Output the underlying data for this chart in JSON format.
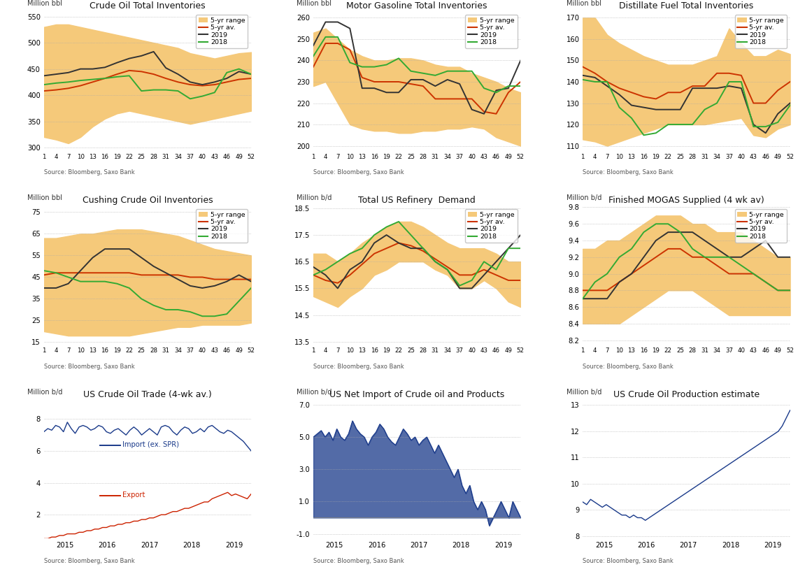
{
  "background_color": "#ffffff",
  "grid_color": "#aaaaaa",
  "range_color": "#f5c97a",
  "av_color": "#cc3300",
  "line2019_color": "#333333",
  "line2018_color": "#33aa33",
  "blue_color": "#1a3a8a",
  "red_color": "#cc2200",
  "source_text": "Source: Bloomberg, Saxo Bank",
  "panel1": {
    "title": "Crude Oil Total Inventories",
    "ylabel": "Million bbl",
    "ylim": [
      295,
      560
    ],
    "yticks": [
      300,
      350,
      400,
      450,
      500,
      550
    ],
    "weeks": [
      1,
      4,
      7,
      10,
      13,
      16,
      19,
      22,
      25,
      28,
      31,
      34,
      37,
      40,
      43,
      46,
      49,
      52
    ],
    "range_low": [
      320,
      315,
      308,
      320,
      340,
      355,
      365,
      370,
      365,
      360,
      355,
      350,
      345,
      350,
      355,
      360,
      365,
      370
    ],
    "range_high": [
      530,
      535,
      535,
      530,
      525,
      520,
      515,
      510,
      505,
      500,
      495,
      490,
      480,
      475,
      470,
      475,
      480,
      482
    ],
    "av5yr": [
      408,
      410,
      413,
      418,
      425,
      432,
      440,
      447,
      445,
      440,
      432,
      425,
      420,
      418,
      420,
      425,
      430,
      432
    ],
    "line2019": [
      437,
      440,
      443,
      450,
      450,
      453,
      462,
      470,
      475,
      483,
      452,
      440,
      425,
      420,
      425,
      432,
      445,
      440
    ],
    "line2018": [
      420,
      423,
      425,
      428,
      430,
      432,
      435,
      437,
      408,
      410,
      410,
      408,
      393,
      398,
      405,
      443,
      450,
      440
    ]
  },
  "panel2": {
    "title": "Motor Gasoline Total Inventories",
    "ylabel": "Million bbl",
    "ylim": [
      198,
      263
    ],
    "yticks": [
      200,
      210,
      220,
      230,
      240,
      250,
      260
    ],
    "weeks": [
      1,
      4,
      7,
      10,
      13,
      16,
      19,
      22,
      25,
      28,
      31,
      34,
      37,
      40,
      43,
      46,
      49,
      52
    ],
    "range_low": [
      228,
      230,
      220,
      210,
      208,
      207,
      207,
      206,
      206,
      207,
      207,
      208,
      208,
      209,
      208,
      204,
      202,
      200
    ],
    "range_high": [
      253,
      255,
      250,
      245,
      242,
      240,
      240,
      241,
      241,
      240,
      238,
      237,
      237,
      234,
      232,
      230,
      227,
      225
    ],
    "av5yr": [
      237,
      248,
      248,
      245,
      232,
      230,
      230,
      230,
      229,
      228,
      222,
      222,
      222,
      222,
      216,
      215,
      225,
      230
    ],
    "line2019": [
      247,
      258,
      258,
      255,
      227,
      227,
      225,
      225,
      231,
      231,
      228,
      231,
      229,
      217,
      215,
      226,
      227,
      240
    ],
    "line2018": [
      242,
      251,
      251,
      239,
      237,
      237,
      238,
      241,
      235,
      234,
      233,
      235,
      235,
      235,
      227,
      225,
      228,
      228
    ]
  },
  "panel3": {
    "title": "Distillate Fuel Total Inventories",
    "ylabel": "Million bbl",
    "ylim": [
      108,
      173
    ],
    "yticks": [
      110,
      120,
      130,
      140,
      150,
      160,
      170
    ],
    "weeks": [
      1,
      4,
      7,
      10,
      13,
      16,
      19,
      22,
      25,
      28,
      31,
      34,
      37,
      40,
      43,
      46,
      49,
      52
    ],
    "range_low": [
      113,
      112,
      110,
      112,
      114,
      116,
      118,
      120,
      120,
      120,
      120,
      121,
      122,
      123,
      115,
      114,
      118,
      120
    ],
    "range_high": [
      170,
      170,
      162,
      158,
      155,
      152,
      150,
      148,
      148,
      148,
      150,
      152,
      165,
      158,
      152,
      152,
      155,
      153
    ],
    "av5yr": [
      147,
      144,
      140,
      137,
      135,
      133,
      132,
      135,
      135,
      138,
      138,
      144,
      144,
      143,
      130,
      130,
      136,
      140
    ],
    "line2019": [
      143,
      142,
      138,
      134,
      129,
      128,
      127,
      127,
      127,
      137,
      137,
      137,
      138,
      137,
      120,
      116,
      125,
      130
    ],
    "line2018": [
      141,
      140,
      140,
      128,
      123,
      115,
      116,
      120,
      120,
      120,
      127,
      130,
      140,
      140,
      119,
      119,
      121,
      129
    ]
  },
  "panel4": {
    "title": "Cushing Crude Oil Inventories",
    "ylabel": "Million bbl",
    "ylim": [
      14,
      78
    ],
    "yticks": [
      15,
      25,
      35,
      45,
      55,
      65,
      75
    ],
    "weeks": [
      1,
      4,
      7,
      10,
      13,
      16,
      19,
      22,
      25,
      28,
      31,
      34,
      37,
      40,
      43,
      46,
      49,
      52
    ],
    "range_low": [
      20,
      19,
      18,
      18,
      18,
      18,
      18,
      18,
      19,
      20,
      21,
      22,
      22,
      23,
      23,
      23,
      23,
      24
    ],
    "range_high": [
      63,
      63,
      64,
      65,
      65,
      66,
      67,
      67,
      67,
      66,
      65,
      64,
      62,
      60,
      58,
      57,
      56,
      55
    ],
    "av5yr": [
      46,
      47,
      47,
      47,
      47,
      47,
      47,
      47,
      46,
      46,
      46,
      46,
      45,
      45,
      44,
      44,
      44,
      44
    ],
    "line2019": [
      40,
      40,
      42,
      48,
      54,
      58,
      58,
      58,
      54,
      50,
      47,
      44,
      41,
      40,
      41,
      43,
      46,
      43
    ],
    "line2018": [
      48,
      47,
      45,
      43,
      43,
      43,
      42,
      40,
      35,
      32,
      30,
      30,
      29,
      27,
      27,
      28,
      34,
      40
    ]
  },
  "panel5": {
    "title": "Total US Refinery  Demand",
    "ylabel": "Million b/d",
    "ylim": [
      13.4,
      18.6
    ],
    "yticks": [
      13.5,
      14.5,
      15.5,
      16.5,
      17.5,
      18.5
    ],
    "weeks": [
      1,
      4,
      7,
      10,
      13,
      16,
      19,
      22,
      25,
      28,
      31,
      34,
      37,
      40,
      43,
      46,
      49,
      52
    ],
    "range_low": [
      15.2,
      15.0,
      14.8,
      15.2,
      15.5,
      16.0,
      16.2,
      16.5,
      16.5,
      16.5,
      16.2,
      16.0,
      15.5,
      15.5,
      15.8,
      15.5,
      15.0,
      14.8
    ],
    "range_high": [
      16.8,
      16.8,
      16.5,
      16.8,
      17.2,
      17.5,
      17.8,
      18.0,
      18.0,
      17.8,
      17.5,
      17.2,
      17.0,
      17.0,
      17.0,
      16.8,
      16.5,
      16.5
    ],
    "av5yr": [
      16.0,
      15.8,
      15.7,
      16.0,
      16.4,
      16.8,
      17.0,
      17.2,
      17.1,
      16.9,
      16.6,
      16.3,
      16.0,
      16.0,
      16.2,
      16.0,
      15.8,
      15.8
    ],
    "line2019": [
      16.3,
      16.0,
      15.5,
      16.2,
      16.5,
      17.2,
      17.5,
      17.2,
      17.0,
      17.0,
      16.5,
      16.2,
      15.5,
      15.5,
      16.0,
      16.5,
      17.0,
      17.5
    ],
    "line2018": [
      16.0,
      16.2,
      16.5,
      16.8,
      17.0,
      17.5,
      17.8,
      18.0,
      17.5,
      17.0,
      16.5,
      16.2,
      15.6,
      15.8,
      16.5,
      16.2,
      17.0,
      17.0
    ]
  },
  "panel6": {
    "title": "Finished MOGAS Supplied (4 wk av)",
    "ylabel": "Million b/d",
    "ylim": [
      8.15,
      9.82
    ],
    "yticks": [
      8.2,
      8.4,
      8.6,
      8.8,
      9.0,
      9.2,
      9.4,
      9.6,
      9.8
    ],
    "weeks": [
      1,
      4,
      7,
      10,
      13,
      16,
      19,
      22,
      25,
      28,
      31,
      34,
      37,
      40,
      43,
      46,
      49,
      52
    ],
    "range_low": [
      8.4,
      8.4,
      8.4,
      8.4,
      8.5,
      8.6,
      8.7,
      8.8,
      8.8,
      8.8,
      8.7,
      8.6,
      8.5,
      8.5,
      8.5,
      8.5,
      8.5,
      8.5
    ],
    "range_high": [
      9.3,
      9.3,
      9.4,
      9.4,
      9.5,
      9.6,
      9.7,
      9.7,
      9.7,
      9.6,
      9.6,
      9.5,
      9.5,
      9.5,
      9.4,
      9.3,
      9.2,
      9.2
    ],
    "av5yr": [
      8.8,
      8.8,
      8.8,
      8.9,
      9.0,
      9.1,
      9.2,
      9.3,
      9.3,
      9.2,
      9.2,
      9.1,
      9.0,
      9.0,
      9.0,
      8.9,
      8.8,
      8.8
    ],
    "line2019": [
      8.7,
      8.7,
      8.7,
      8.9,
      9.0,
      9.2,
      9.4,
      9.5,
      9.5,
      9.5,
      9.4,
      9.3,
      9.2,
      9.2,
      9.3,
      9.4,
      9.2,
      9.2
    ],
    "line2018": [
      8.7,
      8.9,
      9.0,
      9.2,
      9.3,
      9.5,
      9.6,
      9.6,
      9.5,
      9.3,
      9.2,
      9.2,
      9.2,
      9.1,
      9.0,
      8.9,
      8.8,
      8.8
    ]
  },
  "panel7": {
    "title": "US Crude Oil Trade (4-wk av.)",
    "ylabel": "Million b/d",
    "ylim": [
      0.5,
      9.2
    ],
    "yticks": [
      2,
      4,
      6,
      8
    ],
    "years": [
      "2015",
      "2016",
      "2017",
      "2018",
      "2019"
    ],
    "import_label": "Import (ex. SPR)",
    "export_label": "Export",
    "import_vals": [
      7.2,
      7.4,
      7.3,
      7.6,
      7.5,
      7.2,
      7.8,
      7.4,
      7.1,
      7.5,
      7.6,
      7.5,
      7.3,
      7.4,
      7.6,
      7.5,
      7.2,
      7.1,
      7.3,
      7.4,
      7.2,
      7.0,
      7.3,
      7.5,
      7.3,
      7.0,
      7.2,
      7.4,
      7.2,
      7.0,
      7.5,
      7.6,
      7.5,
      7.2,
      7.0,
      7.3,
      7.5,
      7.4,
      7.1,
      7.2,
      7.4,
      7.2,
      7.5,
      7.6,
      7.4,
      7.2,
      7.1,
      7.3,
      7.2,
      7.0,
      6.8,
      6.6,
      6.3,
      6.0
    ],
    "export_vals": [
      0.5,
      0.5,
      0.6,
      0.6,
      0.7,
      0.7,
      0.8,
      0.8,
      0.8,
      0.9,
      0.9,
      1.0,
      1.0,
      1.1,
      1.1,
      1.2,
      1.2,
      1.3,
      1.3,
      1.4,
      1.4,
      1.5,
      1.5,
      1.6,
      1.6,
      1.7,
      1.7,
      1.8,
      1.8,
      1.9,
      2.0,
      2.0,
      2.1,
      2.2,
      2.2,
      2.3,
      2.4,
      2.4,
      2.5,
      2.6,
      2.7,
      2.8,
      2.8,
      3.0,
      3.1,
      3.2,
      3.3,
      3.4,
      3.2,
      3.3,
      3.2,
      3.1,
      3.0,
      3.3
    ]
  },
  "panel8": {
    "title": "US Net Import of Crude oil and Products",
    "ylabel": "Million b/d",
    "ylim": [
      -1.3,
      7.3
    ],
    "yticks": [
      -1.0,
      1.0,
      3.0,
      5.0,
      7.0
    ],
    "years": [
      "2015",
      "2016",
      "2017",
      "2018",
      "2019"
    ],
    "net_import": [
      5.0,
      5.2,
      5.4,
      5.0,
      5.3,
      4.8,
      5.5,
      5.0,
      4.8,
      5.2,
      6.0,
      5.5,
      5.2,
      5.0,
      4.5,
      5.0,
      5.3,
      5.8,
      5.5,
      5.0,
      4.7,
      4.5,
      5.0,
      5.5,
      5.2,
      4.8,
      5.0,
      4.5,
      4.8,
      5.0,
      4.5,
      4.0,
      4.5,
      4.0,
      3.5,
      3.0,
      2.5,
      3.0,
      2.0,
      1.5,
      2.0,
      1.0,
      0.5,
      1.0,
      0.5,
      -0.5,
      0.0,
      0.5,
      1.0,
      0.5,
      0.0,
      1.0,
      0.5,
      0.0
    ]
  },
  "panel9": {
    "title": "US Crude Oil Production estimate",
    "ylabel": "Million b/d",
    "ylim": [
      7.9,
      13.2
    ],
    "yticks": [
      8,
      9,
      10,
      11,
      12,
      13
    ],
    "years": [
      "2015",
      "2016",
      "2017",
      "2018",
      "2019"
    ],
    "production": [
      9.3,
      9.2,
      9.4,
      9.3,
      9.2,
      9.1,
      9.2,
      9.1,
      9.0,
      8.9,
      8.8,
      8.8,
      8.7,
      8.8,
      8.7,
      8.7,
      8.6,
      8.7,
      8.8,
      8.9,
      9.0,
      9.1,
      9.2,
      9.3,
      9.4,
      9.5,
      9.6,
      9.7,
      9.8,
      9.9,
      10.0,
      10.1,
      10.2,
      10.3,
      10.4,
      10.5,
      10.6,
      10.7,
      10.8,
      10.9,
      11.0,
      11.1,
      11.2,
      11.3,
      11.4,
      11.5,
      11.6,
      11.7,
      11.8,
      11.9,
      12.0,
      12.2,
      12.5,
      12.8
    ]
  }
}
